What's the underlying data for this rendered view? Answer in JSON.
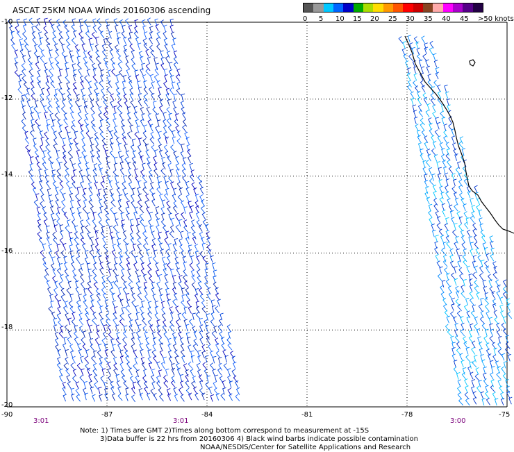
{
  "title": "ASCAT 25KM NOAA Winds 20160306 ascending",
  "legend": {
    "colors": [
      "#555555",
      "#999999",
      "#00c8ff",
      "#0064ff",
      "#0000c8",
      "#00aa00",
      "#aadd00",
      "#ffdd00",
      "#ff9900",
      "#ff5500",
      "#ff0000",
      "#cc0000",
      "#884422",
      "#ffaaaa",
      "#ff00ff",
      "#aa00cc",
      "#550088",
      "#220044"
    ],
    "labels": [
      "0",
      "5",
      "10",
      "15",
      "20",
      "25",
      "30",
      "35",
      "40",
      "45",
      ">50 knots"
    ]
  },
  "map": {
    "lon_range": [
      -90,
      -75
    ],
    "lat_range": [
      -20,
      -10
    ],
    "x_ticks": [
      "-90",
      "-87",
      "-84",
      "-81",
      "-78",
      "-75"
    ],
    "y_ticks": [
      "-10",
      "-12",
      "-14",
      "-16",
      "-18",
      "-20"
    ]
  },
  "times": [
    "3:01",
    "3:01",
    "3:00"
  ],
  "note": {
    "line1": "Note: 1) Times are GMT 2)Times along bottom correspond to measurement at -15S",
    "line2": "3)Data buffer is 22 hrs from 20160306 4) Black wind barbs indicate possible contamination",
    "line3": "NOAA/NESDIS/Center for Satellite Applications and Research"
  }
}
